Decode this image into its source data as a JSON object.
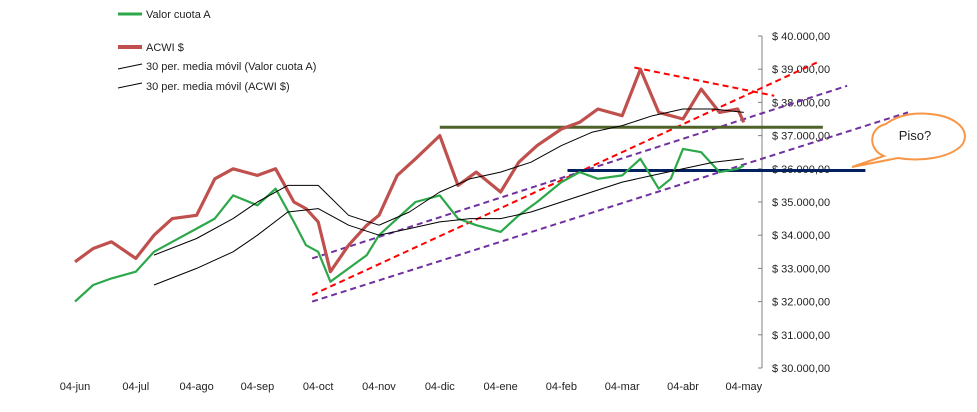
{
  "chart_data": {
    "type": "line",
    "title": "",
    "xlabel": "",
    "ylabel": "",
    "x_ticks": [
      "04-jun",
      "04-jul",
      "04-ago",
      "04-sep",
      "04-oct",
      "04-nov",
      "04-dic",
      "04-ene",
      "04-feb",
      "04-mar",
      "04-abr",
      "04-may"
    ],
    "x_range": [
      0,
      11.0
    ],
    "y_ticks": [
      "$ 30.000,00",
      "$ 31.000,00",
      "$ 32.000,00",
      "$ 33.000,00",
      "$ 34.000,00",
      "$ 35.000,00",
      "$ 36.000,00",
      "$ 37.000,00",
      "$ 38.000,00",
      "$ 39.000,00",
      "$ 40.000,00"
    ],
    "ylim": [
      30000,
      40000
    ],
    "grid": false,
    "legend_position": "top-left",
    "legend": [
      {
        "label": "Valor cuota A",
        "color": "#2ca84a"
      },
      {
        "label": "ACWI $",
        "color": "#c0504d"
      },
      {
        "label": "30 per. media móvil (Valor cuota A)",
        "color": "#000000"
      },
      {
        "label": "30 per. media móvil (ACWI $)",
        "color": "#000000"
      }
    ],
    "series": [
      {
        "name": "Valor cuota A",
        "color": "#2ca84a",
        "x": [
          0,
          0.3,
          0.6,
          1.0,
          1.3,
          1.6,
          2.0,
          2.3,
          2.6,
          3.0,
          3.3,
          3.6,
          3.8,
          4.0,
          4.2,
          4.5,
          4.8,
          5.0,
          5.3,
          5.6,
          6.0,
          6.3,
          6.6,
          7.0,
          7.3,
          7.6,
          8.0,
          8.3,
          8.6,
          9.0,
          9.3,
          9.6,
          9.8,
          10.0,
          10.3,
          10.6,
          10.9,
          11.0
        ],
        "y": [
          32000,
          32500,
          32700,
          32900,
          33500,
          33800,
          34200,
          34500,
          35200,
          34900,
          35400,
          34400,
          33700,
          33500,
          32600,
          33000,
          33400,
          34000,
          34500,
          35000,
          35200,
          34500,
          34300,
          34100,
          34600,
          35000,
          35600,
          35900,
          35700,
          35800,
          36300,
          35400,
          35700,
          36600,
          36500,
          35900,
          36000,
          36100
        ]
      },
      {
        "name": "ACWI $",
        "color": "#c0504d",
        "x": [
          0,
          0.3,
          0.6,
          1.0,
          1.3,
          1.6,
          2.0,
          2.3,
          2.6,
          3.0,
          3.3,
          3.6,
          3.8,
          4.0,
          4.2,
          4.5,
          4.8,
          5.0,
          5.3,
          5.6,
          6.0,
          6.3,
          6.6,
          7.0,
          7.3,
          7.6,
          8.0,
          8.3,
          8.6,
          9.0,
          9.3,
          9.6,
          9.8,
          10.0,
          10.3,
          10.6,
          10.9,
          11.0
        ],
        "y": [
          33200,
          33600,
          33800,
          33300,
          34000,
          34500,
          34600,
          35700,
          36000,
          35800,
          36000,
          35000,
          34800,
          34400,
          32900,
          33700,
          34300,
          34600,
          35800,
          36300,
          37000,
          35500,
          35900,
          35300,
          36200,
          36700,
          37200,
          37400,
          37800,
          37600,
          39000,
          37700,
          37600,
          37500,
          38400,
          37700,
          37800,
          37400
        ]
      },
      {
        "name": "30 per. media móvil (Valor cuota A)",
        "color": "#000000",
        "x": [
          1.3,
          2.0,
          2.6,
          3.0,
          3.5,
          4.0,
          4.5,
          5.0,
          5.5,
          6.0,
          6.5,
          7.0,
          7.5,
          8.0,
          8.5,
          9.0,
          9.5,
          10.0,
          10.5,
          11.0
        ],
        "y": [
          32500,
          33000,
          33500,
          34000,
          34700,
          34800,
          34300,
          34000,
          34200,
          34400,
          34500,
          34500,
          34700,
          35000,
          35300,
          35600,
          35800,
          36000,
          36200,
          36300
        ]
      },
      {
        "name": "30 per. media móvil (ACWI $)",
        "color": "#000000",
        "x": [
          1.3,
          2.0,
          2.6,
          3.0,
          3.5,
          4.0,
          4.5,
          5.0,
          5.5,
          6.0,
          6.5,
          7.0,
          7.5,
          8.0,
          8.5,
          9.0,
          9.5,
          10.0,
          10.5,
          11.0
        ],
        "y": [
          33400,
          33900,
          34500,
          35000,
          35500,
          35500,
          34600,
          34300,
          34700,
          35300,
          35700,
          35900,
          36200,
          36700,
          37100,
          37300,
          37600,
          37800,
          37800,
          37700
        ]
      }
    ],
    "trendlines": [
      {
        "name": "red-upper-channel",
        "color": "#ff0000",
        "style": "dashed",
        "x": [
          3.9,
          12.2
        ],
        "y": [
          32200,
          39200
        ]
      },
      {
        "name": "red-descending",
        "color": "#ff0000",
        "style": "dashed",
        "x": [
          9.2,
          11.5
        ],
        "y": [
          39050,
          38200
        ]
      },
      {
        "name": "purple-upper-channel",
        "color": "#7030a0",
        "style": "dashed",
        "x": [
          3.9,
          12.7
        ],
        "y": [
          33300,
          38500
        ]
      },
      {
        "name": "purple-lower-channel",
        "color": "#7030a0",
        "style": "dashed",
        "x": [
          3.9,
          13.7
        ],
        "y": [
          32000,
          37700
        ]
      },
      {
        "name": "green-resistance",
        "color": "#4f6228",
        "style": "solid",
        "x": [
          6.0,
          12.3
        ],
        "y": [
          37250,
          37250
        ]
      },
      {
        "name": "navy-support",
        "color": "#002060",
        "style": "solid",
        "x": [
          8.1,
          13.0
        ],
        "y": [
          35950,
          35950
        ]
      }
    ],
    "callout": {
      "text": "Piso?"
    }
  }
}
